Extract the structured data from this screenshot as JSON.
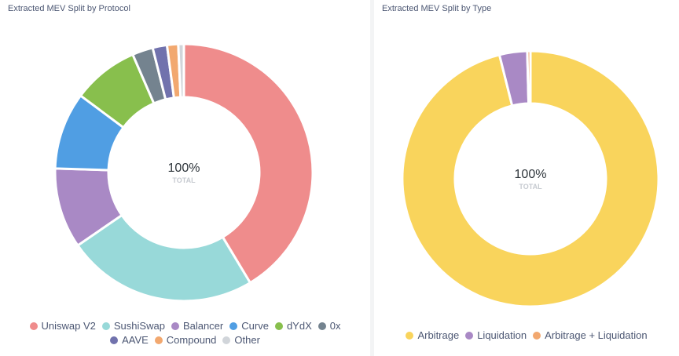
{
  "chart_data": [
    {
      "type": "pie",
      "variant": "donut",
      "title": "Extracted MEV Split by Protocol",
      "center_value": "100%",
      "center_label": "TOTAL",
      "legend_position": "bottom",
      "categories": [
        "Uniswap V2",
        "SushiSwap",
        "Balancer",
        "Curve",
        "dYdX",
        "0x",
        "AAVE",
        "Compound",
        "Other"
      ],
      "values": [
        41.4,
        24.0,
        10.1,
        9.7,
        8.3,
        2.6,
        1.8,
        1.4,
        0.7
      ],
      "colors": [
        "#ef8c8c",
        "#98d9d9",
        "#a989c5",
        "#509ee3",
        "#88bf4d",
        "#74838f",
        "#7172ad",
        "#f2a86f",
        "#d1d5da"
      ]
    },
    {
      "type": "pie",
      "variant": "donut",
      "title": "Extracted MEV Split by Type",
      "center_value": "100%",
      "center_label": "TOTAL",
      "legend_position": "bottom",
      "categories": [
        "Arbitrage",
        "Liquidation",
        "Arbitrage + Liquidation"
      ],
      "values": [
        96.1,
        3.5,
        0.4
      ],
      "colors": [
        "#f9d45c",
        "#a989c5",
        "#f2a86f"
      ]
    }
  ]
}
